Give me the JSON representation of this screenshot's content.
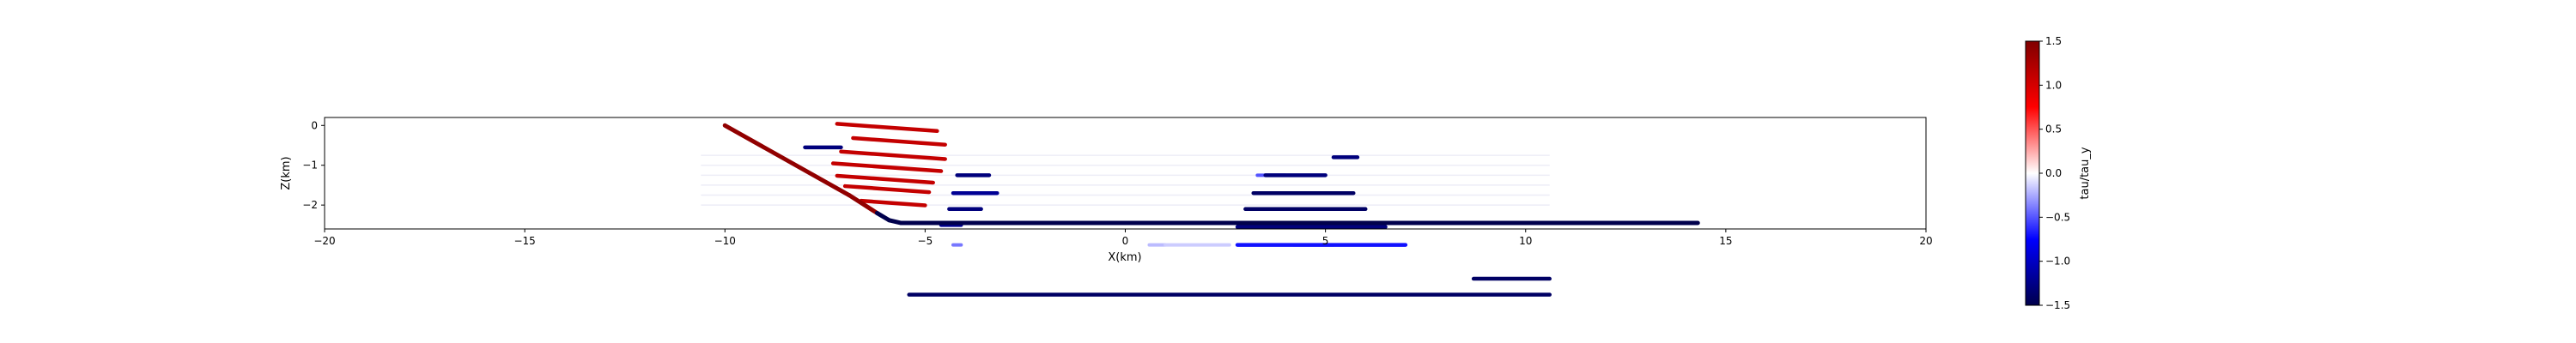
{
  "chart_data": {
    "type": "scatter",
    "xlabel": "X(km)",
    "ylabel": "Z(km)",
    "xlim": [
      -20,
      20
    ],
    "ylim": [
      -2.6,
      0.2
    ],
    "xticks": [
      -20,
      -15,
      -10,
      -5,
      0,
      5,
      10,
      15,
      20
    ],
    "xtick_labels": [
      "−20",
      "−15",
      "−10",
      "−5",
      "0",
      "5",
      "10",
      "15",
      "20"
    ],
    "yticks": [
      0,
      -1,
      -2
    ],
    "ytick_labels": [
      "0",
      "−1",
      "−2"
    ],
    "grid": false,
    "colormap": "seismic",
    "colorbar": {
      "label": "tau/tau_y",
      "range": [
        -1.5,
        1.5
      ],
      "ticks": [
        1.5,
        1.0,
        0.5,
        0.0,
        -0.5,
        -1.0,
        -1.5
      ],
      "tick_labels": [
        "1.5",
        "1.0",
        "0.5",
        "0.0",
        "−0.5",
        "−1.0",
        "−1.5"
      ],
      "colors": [
        "#00004c",
        "#0000ff",
        "#ffffff",
        "#ff0000",
        "#800000"
      ]
    },
    "faint_background_rows": [
      {
        "x0": -10.6,
        "x1": 10.6,
        "z": -0.75
      },
      {
        "x0": -10.6,
        "x1": 10.6,
        "z": -1.0
      },
      {
        "x0": -10.6,
        "x1": 10.6,
        "z": -1.25
      },
      {
        "x0": -10.6,
        "x1": 10.6,
        "z": -1.5
      },
      {
        "x0": -10.6,
        "x1": 10.6,
        "z": -1.75
      },
      {
        "x0": -10.6,
        "x1": 10.6,
        "z": -2.0
      }
    ],
    "segments": [
      {
        "x0": -8.0,
        "x1": -7.1,
        "z": -0.55,
        "value": -1.3
      },
      {
        "x0": -7.2,
        "x1": -4.7,
        "z": -0.05,
        "value": 1.1,
        "tilt": 0.18
      },
      {
        "x0": -6.8,
        "x1": -4.5,
        "z": -0.4,
        "value": 1.1,
        "tilt": 0.18
      },
      {
        "x0": -7.1,
        "x1": -4.5,
        "z": -0.75,
        "value": 1.1,
        "tilt": 0.18
      },
      {
        "x0": -7.3,
        "x1": -4.6,
        "z": -1.05,
        "value": 1.1,
        "tilt": 0.18
      },
      {
        "x0": -7.2,
        "x1": -4.8,
        "z": -1.35,
        "value": 1.1,
        "tilt": 0.18
      },
      {
        "x0": -7.0,
        "x1": -4.9,
        "z": -1.6,
        "value": 1.1,
        "tilt": 0.18
      },
      {
        "x0": -6.6,
        "x1": -5.0,
        "z": -1.95,
        "value": 1.1,
        "tilt": 0.18
      },
      {
        "x0": -4.2,
        "x1": -3.4,
        "z": -1.25,
        "value": -1.3
      },
      {
        "x0": -4.3,
        "x1": -3.2,
        "z": -1.7,
        "value": -1.2
      },
      {
        "x0": -4.4,
        "x1": -3.6,
        "z": -2.1,
        "value": -1.3
      },
      {
        "x0": -4.6,
        "x1": -4.1,
        "z": -2.5,
        "value": -1.2
      },
      {
        "x0": 5.2,
        "x1": 5.8,
        "z": -0.8,
        "value": -1.3
      },
      {
        "x0": 3.5,
        "x1": 5.0,
        "z": -1.25,
        "value": -1.3
      },
      {
        "x0": 3.2,
        "x1": 5.7,
        "z": -1.7,
        "value": -1.4
      },
      {
        "x0": 3.0,
        "x1": 6.0,
        "z": -2.1,
        "value": -1.4
      },
      {
        "x0": 2.8,
        "x1": 6.5,
        "z": -2.55,
        "value": -1.3
      },
      {
        "x0": 2.8,
        "x1": 7.0,
        "z": -3.0,
        "value": -0.7
      },
      {
        "x0": -5.4,
        "x1": 10.6,
        "z": -4.25,
        "value": -1.4
      },
      {
        "x0": 8.7,
        "x1": 10.6,
        "z": -3.85,
        "value": -1.4
      }
    ],
    "light_segments": [
      {
        "x0": -4.3,
        "x1": -4.1,
        "z": -3.0,
        "value": -0.4
      },
      {
        "x0": 3.3,
        "x1": 4.0,
        "z": -1.25,
        "value": -0.5
      },
      {
        "x0": 0.6,
        "x1": 1.0,
        "z": -3.0,
        "value": -0.2
      },
      {
        "x0": 1.0,
        "x1": 2.6,
        "z": -3.0,
        "value": -0.15
      },
      {
        "x0": 4.2,
        "x1": 5.2,
        "z": -3.0,
        "value": -0.35
      }
    ],
    "fault": {
      "points": [
        [
          -10.0,
          0.0
        ],
        [
          -6.9,
          -1.75
        ],
        [
          -6.2,
          -2.2
        ],
        [
          -5.9,
          -2.38
        ],
        [
          -5.6,
          -2.45
        ],
        [
          14.3,
          -2.45
        ]
      ],
      "value_start": 1.4,
      "value_end": -1.5,
      "turn_x": -6.3
    }
  }
}
